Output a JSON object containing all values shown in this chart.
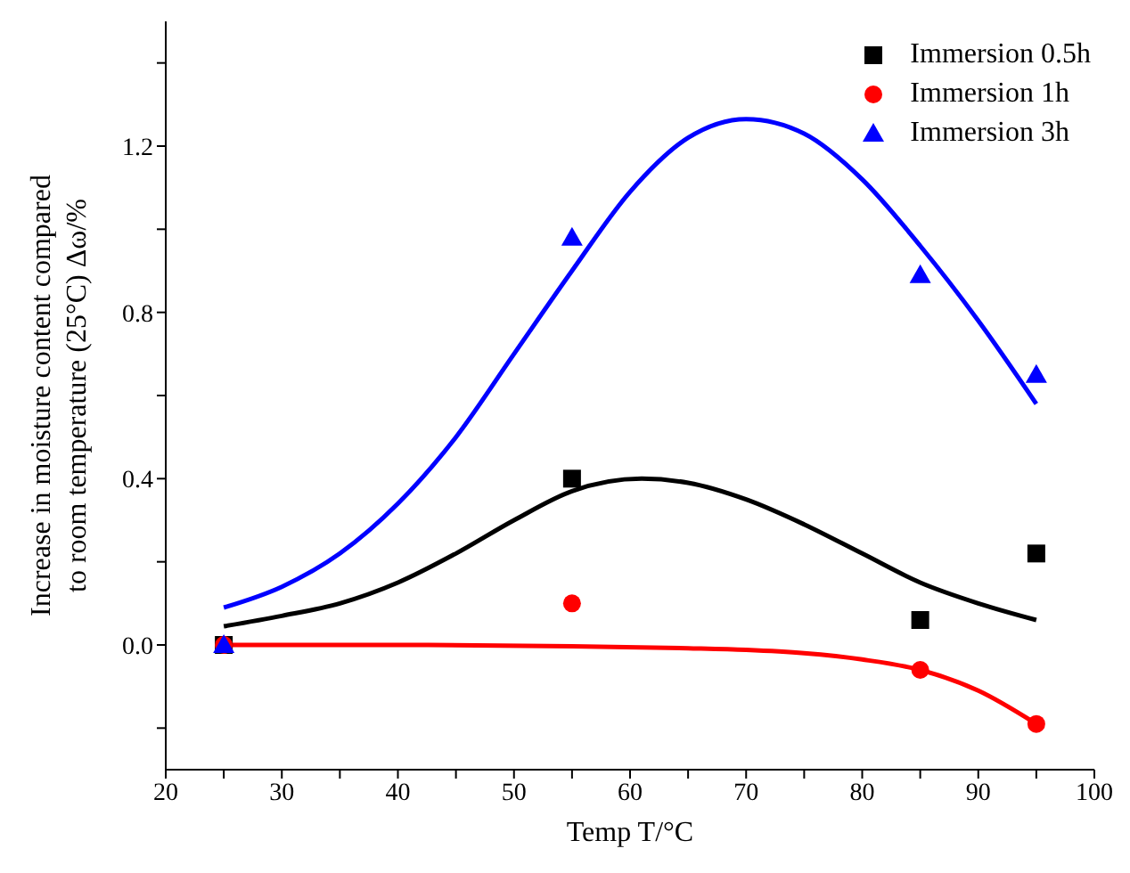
{
  "chart_data": {
    "type": "scatter",
    "xlabel": "Temp T/°C",
    "ylabel": "Increase in moisture content compared to room temperature (25°C) Δω/%",
    "xlim": [
      20,
      100
    ],
    "xticks": [
      20,
      {
        "value": 25,
        "label": null
      },
      30,
      {
        "value": 35,
        "label": null
      },
      40,
      {
        "value": 45,
        "label": null
      },
      50,
      {
        "value": 55,
        "label": null
      },
      60,
      {
        "value": 65,
        "label": null
      },
      70,
      {
        "value": 75,
        "label": null
      },
      80,
      {
        "value": 85,
        "label": null
      },
      90,
      {
        "value": 95,
        "label": null
      },
      100
    ],
    "ylim": [
      -0.3,
      1.5
    ],
    "yticks": [
      {
        "value": -0.2,
        "label": null
      },
      {
        "value": 0,
        "label": "0.0"
      },
      {
        "value": 0.2,
        "label": null
      },
      {
        "value": 0.4,
        "label": "0.4"
      },
      {
        "value": 0.6,
        "label": null
      },
      {
        "value": 0.8,
        "label": "0.8"
      },
      {
        "value": 1.0,
        "label": null
      },
      {
        "value": 1.2,
        "label": "1.2"
      },
      {
        "value": 1.4,
        "label": null
      }
    ],
    "grid": false,
    "legend": "top right",
    "series": [
      {
        "name": "Immersion 0.5h",
        "marker": "square",
        "color": "#000000",
        "x": [
          25,
          55,
          85,
          95
        ],
        "values": [
          0,
          0.4,
          0.06,
          0.22
        ]
      },
      {
        "name": "Immersion 1h",
        "marker": "circle",
        "color": "#ff0000",
        "x": [
          25,
          55,
          85,
          95
        ],
        "values": [
          0,
          0.1,
          -0.06,
          -0.19
        ]
      },
      {
        "name": "Immersion 3h",
        "marker": "triangle",
        "color": "#0000ff",
        "x": [
          25,
          55,
          85,
          95
        ],
        "values": [
          0,
          0.98,
          0.89,
          0.65
        ]
      },
      {
        "type": "line",
        "color": "#000000",
        "x": [
          25,
          30,
          35,
          40,
          45,
          50,
          55,
          61,
          65,
          70,
          75,
          80,
          85,
          90,
          95
        ],
        "values": [
          0.045,
          0.07,
          0.1,
          0.15,
          0.22,
          0.3,
          0.37,
          0.4,
          0.39,
          0.35,
          0.29,
          0.22,
          0.15,
          0.1,
          0.06
        ]
      },
      {
        "type": "line",
        "color": "#0000ff",
        "x": [
          25,
          30,
          35,
          40,
          45,
          50,
          55,
          60,
          65,
          70,
          75,
          80,
          85,
          90,
          95
        ],
        "values": [
          0.09,
          0.14,
          0.22,
          0.34,
          0.5,
          0.7,
          0.9,
          1.09,
          1.22,
          1.265,
          1.23,
          1.12,
          0.96,
          0.78,
          0.58
        ]
      },
      {
        "type": "line",
        "color": "#ff0000",
        "x": [
          25,
          40,
          55,
          65,
          70,
          75,
          80,
          85,
          90,
          95
        ],
        "values": [
          0,
          0,
          -0.003,
          -0.008,
          -0.012,
          -0.02,
          -0.035,
          -0.06,
          -0.11,
          -0.19
        ]
      }
    ]
  }
}
